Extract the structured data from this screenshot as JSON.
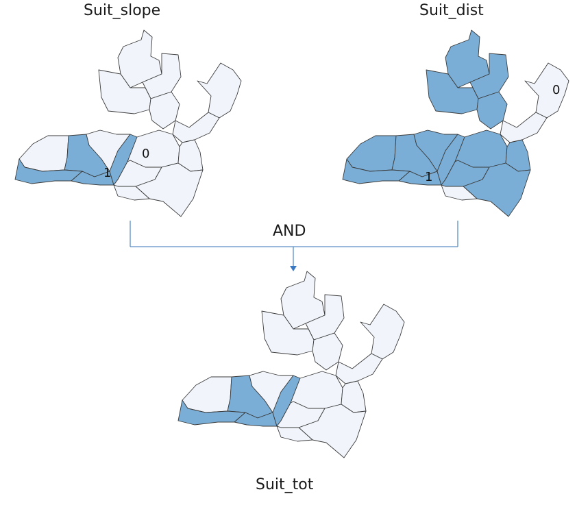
{
  "titles": {
    "left": "Suit_slope",
    "right": "Suit_dist",
    "bottom": "Suit_tot"
  },
  "operator": "AND",
  "labels": {
    "slope_zero": "0",
    "slope_one": "1",
    "dist_zero": "0",
    "dist_one": "1"
  },
  "colors": {
    "suitable": "#7aaed6",
    "unsuitable": "#f1f5fb",
    "connector": "#5b8fc4"
  }
}
